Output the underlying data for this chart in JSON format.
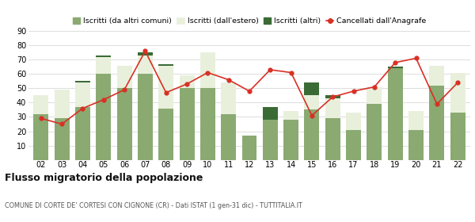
{
  "years": [
    "02",
    "03",
    "04",
    "05",
    "06",
    "07",
    "08",
    "09",
    "10",
    "11",
    "12",
    "13",
    "14",
    "15",
    "16",
    "17",
    "18",
    "19",
    "20",
    "21",
    "22"
  ],
  "iscritti_comuni": [
    32,
    29,
    37,
    60,
    50,
    60,
    36,
    50,
    50,
    32,
    17,
    28,
    28,
    35,
    29,
    21,
    39,
    64,
    21,
    52,
    33
  ],
  "iscritti_estero": [
    13,
    20,
    17,
    12,
    16,
    13,
    30,
    9,
    25,
    22,
    0,
    0,
    6,
    10,
    14,
    12,
    12,
    0,
    13,
    14,
    28
  ],
  "iscritti_altri": [
    0,
    0,
    1,
    1,
    0,
    2,
    1,
    0,
    0,
    0,
    0,
    9,
    0,
    9,
    2,
    0,
    0,
    1,
    0,
    0,
    0
  ],
  "cancellati": [
    29,
    25,
    36,
    42,
    49,
    76,
    47,
    53,
    61,
    56,
    48,
    63,
    61,
    31,
    44,
    48,
    51,
    68,
    71,
    39,
    54
  ],
  "color_comuni": "#8aaa72",
  "color_estero": "#e8f0dc",
  "color_altri": "#3a6b35",
  "color_cancellati": "#d93025",
  "ylim": [
    0,
    90
  ],
  "yticks": [
    10,
    20,
    30,
    40,
    50,
    60,
    70,
    80,
    90
  ],
  "title": "Flusso migratorio della popolazione",
  "subtitle": "COMUNE DI CORTE DE' CORTESI CON CIGNONE (CR) - Dati ISTAT (1 gen-31 dic) - TUTTITALIA.IT",
  "legend_labels": [
    "Iscritti (da altri comuni)",
    "Iscritti (dall'estero)",
    "Iscritti (altri)",
    "Cancellati dall'Anagrafe"
  ],
  "background_color": "#ffffff",
  "grid_color": "#d8d8d8"
}
